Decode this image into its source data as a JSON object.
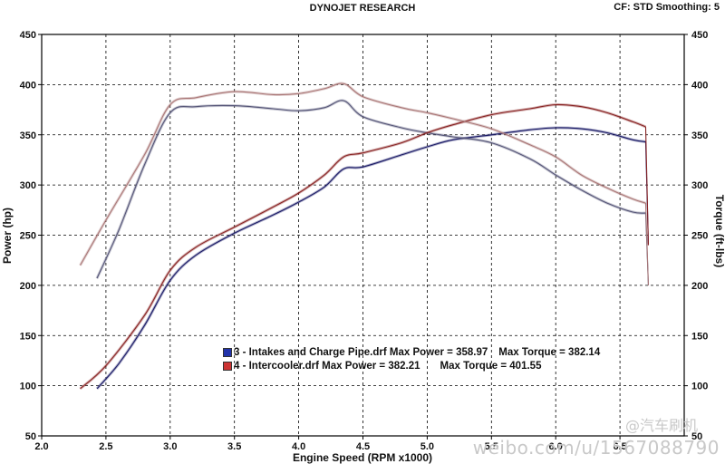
{
  "header": {
    "title": "DYNOJET RESEARCH",
    "settings": "CF: STD  Smoothing: 5"
  },
  "watermark": {
    "url": "weibo.com/u/1567088790",
    "handle": "@汽车刷机"
  },
  "legend": [
    {
      "swatch_color": "#2233aa",
      "label": "3 - Intakes and Charge Pipe.drf Max Power = 358.97",
      "torque": "Max Torque = 382.14"
    },
    {
      "swatch_color": "#cc3333",
      "label": "4 - Intercooler.drf Max Power = 382.21",
      "torque": "Max Torque = 401.55"
    }
  ],
  "chart_data": {
    "type": "line",
    "xlabel": "Engine Speed (RPM x1000)",
    "ylabel_left": "Power (hp)",
    "ylabel_right": "Torque (ft-lbs)",
    "xlim": [
      2.0,
      7.0
    ],
    "ylim": [
      50,
      450
    ],
    "x_ticks": [
      "2.0",
      "2.5",
      "3.0",
      "3.5",
      "4.0",
      "4.5",
      "5.0",
      "5.5",
      "6.0",
      "6.5"
    ],
    "y_ticks": [
      "50",
      "100",
      "150",
      "200",
      "250",
      "300",
      "350",
      "400",
      "450"
    ],
    "grid": true,
    "colors": {
      "run3_power": "#1a1a66",
      "run3_torque": "#555577",
      "run4_power": "#882222",
      "run4_torque": "#aa7777"
    },
    "series": [
      {
        "name": "3 - Intakes and Charge Pipe.drf",
        "kind": "power",
        "x": [
          2.43,
          2.6,
          2.8,
          3.0,
          3.2,
          3.5,
          3.8,
          4.0,
          4.2,
          4.35,
          4.5,
          4.8,
          5.0,
          5.2,
          5.5,
          5.8,
          6.0,
          6.2,
          6.4,
          6.6,
          6.7
        ],
        "y": [
          97,
          122,
          160,
          205,
          230,
          252,
          270,
          283,
          298,
          316,
          318,
          330,
          338,
          345,
          350,
          355,
          357,
          356,
          352,
          345,
          343
        ]
      },
      {
        "name": "3 - Intakes and Charge Pipe.drf",
        "kind": "torque",
        "x": [
          2.43,
          2.6,
          2.8,
          3.0,
          3.2,
          3.5,
          3.8,
          4.0,
          4.2,
          4.35,
          4.5,
          4.8,
          5.0,
          5.2,
          5.5,
          5.8,
          6.0,
          6.2,
          6.4,
          6.6,
          6.7
        ],
        "y": [
          207,
          255,
          320,
          372,
          378,
          379,
          376,
          374,
          377,
          384,
          368,
          357,
          352,
          348,
          342,
          326,
          310,
          295,
          282,
          273,
          272
        ]
      },
      {
        "name": "4 - Intercooler.drf",
        "kind": "power",
        "x": [
          2.3,
          2.5,
          2.8,
          3.0,
          3.2,
          3.5,
          3.8,
          4.0,
          4.2,
          4.35,
          4.5,
          4.8,
          5.0,
          5.2,
          5.5,
          5.8,
          6.0,
          6.2,
          6.4,
          6.6,
          6.7
        ],
        "y": [
          97,
          120,
          170,
          215,
          238,
          258,
          278,
          292,
          310,
          328,
          332,
          342,
          352,
          360,
          370,
          376,
          380,
          378,
          372,
          363,
          358
        ]
      },
      {
        "name": "4 - Intercooler.drf",
        "kind": "torque",
        "x": [
          2.3,
          2.5,
          2.8,
          3.0,
          3.2,
          3.5,
          3.8,
          4.0,
          4.2,
          4.35,
          4.5,
          4.8,
          5.0,
          5.2,
          5.5,
          5.8,
          6.0,
          6.2,
          6.4,
          6.6,
          6.7
        ],
        "y": [
          220,
          265,
          330,
          380,
          387,
          393,
          390,
          391,
          396,
          401,
          388,
          377,
          372,
          366,
          356,
          340,
          328,
          310,
          297,
          286,
          282
        ]
      }
    ]
  }
}
